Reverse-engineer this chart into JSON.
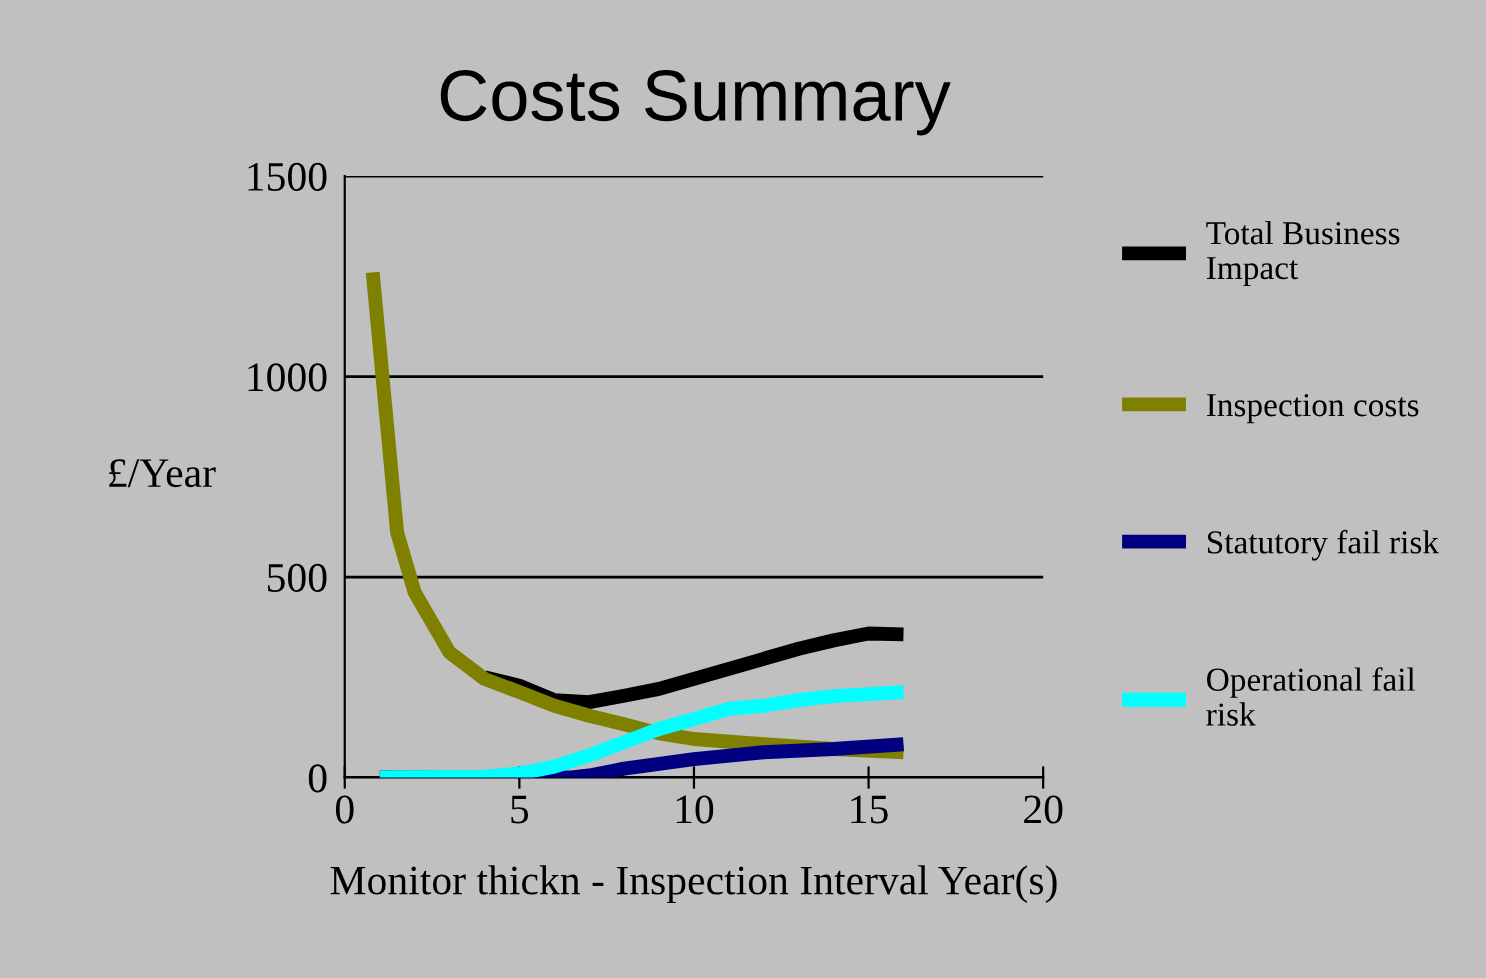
{
  "chart_data": {
    "type": "line",
    "title": "Costs Summary",
    "xlabel": "Monitor thickn - Inspection Interval Year(s)",
    "ylabel": "£/Year",
    "xlim": [
      0,
      20
    ],
    "xticks": [
      0,
      5,
      10,
      15,
      20
    ],
    "ylim": [
      0,
      1500
    ],
    "yticks": [
      0,
      500,
      1000,
      1500
    ],
    "grid": "y",
    "legend": "right",
    "marker": "none",
    "line_style": "solid",
    "series": [
      {
        "name": "Total Business Impact",
        "color": "#000000",
        "x": [
          4,
          5,
          6,
          7,
          8,
          9,
          10,
          11,
          12,
          13,
          14,
          15,
          16
        ],
        "values": [
          250,
          229,
          193,
          188,
          204,
          221,
          246,
          271,
          296,
          321,
          342,
          359,
          357
        ]
      },
      {
        "name": "Inspection costs",
        "color": "#808000",
        "x": [
          0.8,
          1.5,
          2,
          3,
          4,
          5,
          6,
          7,
          8,
          9,
          10,
          12,
          14,
          16
        ],
        "values": [
          1260,
          611,
          462,
          312,
          246,
          213,
          179,
          154,
          133,
          110,
          96,
          83,
          71,
          63
        ]
      },
      {
        "name": "Statutory fail risk",
        "color": "#000080",
        "x": [
          1,
          6.5,
          7,
          8,
          10,
          12,
          14,
          16
        ],
        "values": [
          0,
          0,
          5,
          22,
          46,
          63,
          71,
          83
        ]
      },
      {
        "name": "Operational fail risk",
        "color": "#00ffff",
        "x": [
          1,
          4,
          5,
          6,
          7,
          8,
          9,
          10,
          11,
          12,
          13,
          14,
          15,
          16
        ],
        "values": [
          0,
          2,
          10,
          27,
          55,
          88,
          121,
          146,
          171,
          179,
          193,
          203,
          208,
          213
        ]
      }
    ]
  }
}
